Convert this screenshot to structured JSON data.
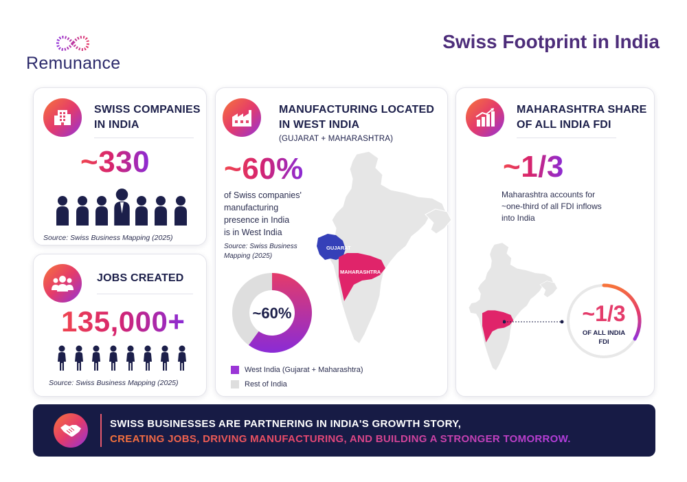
{
  "brand": {
    "name": "Remunance"
  },
  "page_title": "Swiss Footprint in India",
  "card_companies": {
    "heading_line1": "SWISS COMPANIES",
    "heading_line2": "IN INDIA",
    "value": "~330",
    "source": "Source: Swiss Business Mapping (2025)",
    "icon": "building-icon",
    "figure_count": 7
  },
  "card_jobs": {
    "heading": "JOBS CREATED",
    "value": "135,000+",
    "source": "Source: Swiss Business Mapping (2025)",
    "icon": "people-group-icon",
    "figure_count": 8
  },
  "card_manufacturing": {
    "heading_line1": "MANUFACTURING LOCATED",
    "heading_line2": "IN WEST INDIA",
    "subheading": "(GUJARAT + MAHARASHTRA)",
    "value": "~60%",
    "desc_lines": [
      "of Swiss companies'",
      "manufacturing",
      "presence in India",
      "is in West India"
    ],
    "source_lines": [
      "Source: Swiss Business",
      "Mapping (2025)"
    ],
    "icon": "factory-icon",
    "map_labels": {
      "gujarat": "GUJARAT",
      "maharashtra": "MAHARASHTRA"
    },
    "donut_label": "~60%",
    "legend": [
      {
        "label": "West India (Gujarat + Maharashtra)",
        "color": "#9a35d6"
      },
      {
        "label": "Rest of India",
        "color": "#dedede"
      }
    ]
  },
  "card_maharashtra": {
    "heading_line1": "MAHARASHTRA SHARE",
    "heading_line2": "OF ALL INDIA FDI",
    "value": "~1/3",
    "desc_lines": [
      "Maharashtra accounts for",
      "~one-third of all FDI inflows",
      "into India"
    ],
    "icon": "growth-chart-icon",
    "ring_value": "~1/3",
    "ring_caption_line1": "OF ALL INDIA",
    "ring_caption_line2": "FDI"
  },
  "chart_data": {
    "type": "pie",
    "categories": [
      "West India (Gujarat + Maharashtra)",
      "Rest of India"
    ],
    "values": [
      60,
      40
    ],
    "title": ""
  },
  "ring_data": {
    "fraction": 0.333
  },
  "banner": {
    "line1": "SWISS BUSINESSES ARE PARTNERING IN INDIA'S GROWTH STORY,",
    "line2": "CREATING JOBS, DRIVING MANUFACTURING, AND BUILDING A STRONGER TOMORROW.",
    "icon": "handshake-icon"
  },
  "colors": {
    "navy": "#1c1f4a",
    "purple": "#4d2d7a",
    "gujarat": "#3540b8",
    "maharashtra": "#e0246a",
    "accent_orange": "#f7743a",
    "accent_pink": "#e43b6a",
    "accent_violet": "#9333d8"
  }
}
